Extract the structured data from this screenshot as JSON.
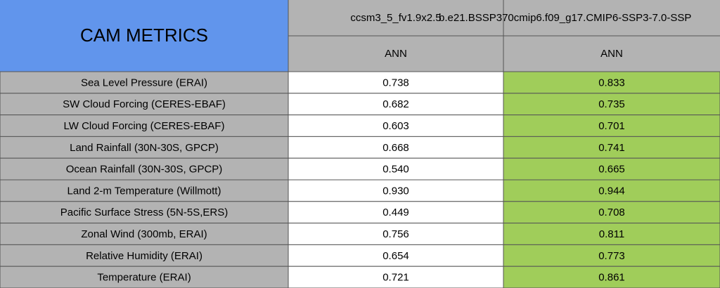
{
  "header": {
    "title": "CAM METRICS",
    "columns": [
      {
        "name": "ccsm3_5_fv1.9x2.5",
        "period": "ANN"
      },
      {
        "name": "b.e21.BSSP370cmip6.f09_g17.CMIP6-SSP3-7.0-SSP",
        "period": "ANN"
      }
    ]
  },
  "table": {
    "rows": [
      [
        "Sea Level Pressure (ERAI)",
        "0.738",
        "0.833"
      ],
      [
        "SW Cloud Forcing (CERES-EBAF)",
        "0.682",
        "0.735"
      ],
      [
        "LW Cloud Forcing (CERES-EBAF)",
        "0.603",
        "0.701"
      ],
      [
        "Land Rainfall (30N-30S, GPCP)",
        "0.668",
        "0.741"
      ],
      [
        "Ocean Rainfall (30N-30S, GPCP)",
        "0.540",
        "0.665"
      ],
      [
        "Land 2-m Temperature (Willmott)",
        "0.930",
        "0.944"
      ],
      [
        "Pacific Surface Stress (5N-5S,ERS)",
        "0.449",
        "0.708"
      ],
      [
        "Zonal Wind (300mb, ERAI)",
        "0.756",
        "0.811"
      ],
      [
        "Relative Humidity (ERAI)",
        "0.654",
        "0.773"
      ],
      [
        "Temperature (ERAI)",
        "0.721",
        "0.861"
      ]
    ]
  }
}
